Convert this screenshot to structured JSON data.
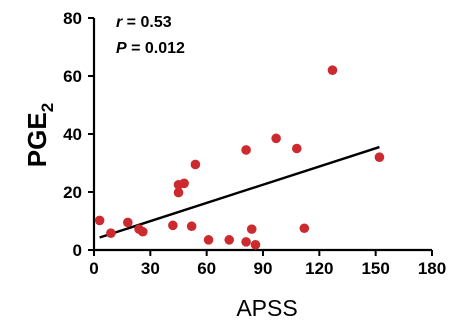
{
  "chart_data": {
    "type": "scatter",
    "xlabel": "APSS",
    "ylabel": {
      "main": "PGE",
      "sub": "2"
    },
    "xlim": [
      0,
      180
    ],
    "ylim": [
      0,
      80
    ],
    "x_ticks": [
      0,
      30,
      60,
      90,
      120,
      150,
      180
    ],
    "y_ticks": [
      0,
      20,
      40,
      60,
      80
    ],
    "x_tick_labels": [
      "0",
      "30",
      "60",
      "90",
      "120",
      "150",
      "180"
    ],
    "y_tick_labels": [
      "0",
      "20",
      "40",
      "60",
      "80"
    ],
    "grid": false,
    "stats": {
      "r_symbol": "r",
      "r_text": " = 0.53",
      "p_symbol": "P",
      "p_text": " = 0.012"
    },
    "points": [
      {
        "x": 3,
        "y": 10.2
      },
      {
        "x": 9,
        "y": 5.8
      },
      {
        "x": 18,
        "y": 9.5
      },
      {
        "x": 24,
        "y": 7.2
      },
      {
        "x": 26,
        "y": 6.3
      },
      {
        "x": 42,
        "y": 8.5
      },
      {
        "x": 45,
        "y": 19.8
      },
      {
        "x": 45,
        "y": 22.5
      },
      {
        "x": 48,
        "y": 23
      },
      {
        "x": 52,
        "y": 8.2
      },
      {
        "x": 54,
        "y": 29.5
      },
      {
        "x": 61,
        "y": 3.5
      },
      {
        "x": 72,
        "y": 3.5
      },
      {
        "x": 81,
        "y": 34.5
      },
      {
        "x": 81,
        "y": 2.8
      },
      {
        "x": 84,
        "y": 7.2
      },
      {
        "x": 86,
        "y": 1.8
      },
      {
        "x": 97,
        "y": 38.5
      },
      {
        "x": 108,
        "y": 35
      },
      {
        "x": 112,
        "y": 7.5
      },
      {
        "x": 127,
        "y": 62
      },
      {
        "x": 152,
        "y": 32
      }
    ],
    "trendline": {
      "x1": 3,
      "y1": 4.3,
      "x2": 152,
      "y2": 35.5
    },
    "colors": {
      "point": "#cc2a2f",
      "line": "#000000",
      "axis": "#000000"
    }
  }
}
